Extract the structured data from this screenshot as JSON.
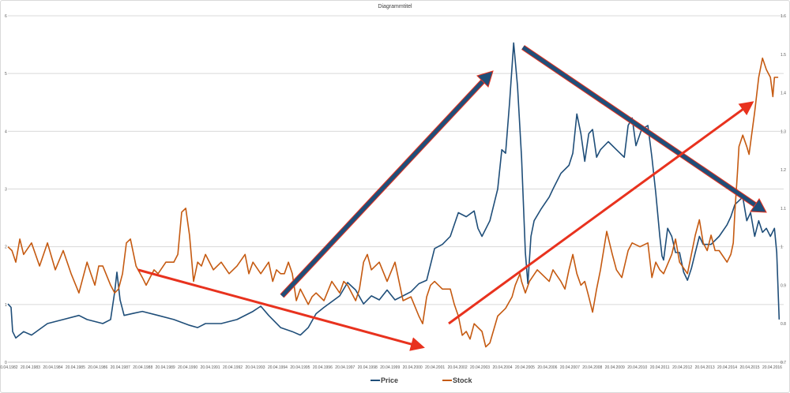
{
  "chart_data": {
    "type": "line",
    "title": "Diagrammtitel",
    "xlabel": "",
    "ylabel": "",
    "x_unit": "decimal year",
    "xlim": [
      1982.3,
      2016.6
    ],
    "ylim_left": [
      0,
      6
    ],
    "ylim_right": [
      0.7,
      1.6
    ],
    "grid": true,
    "legend_position": "bottom",
    "y_ticks_left": [
      "0",
      "1",
      "2",
      "3",
      "4",
      "5",
      "6"
    ],
    "y_ticks_right": [
      "0.7",
      "0.8",
      "0.9",
      "1",
      "1.1",
      "1.2",
      "1.3",
      "1.4",
      "1.5",
      "1.6"
    ],
    "x_ticks": [
      "20.04.1982",
      "20.04.1983",
      "20.04.1984",
      "20.04.1985",
      "20.04.1986",
      "20.04.1987",
      "20.04.1988",
      "20.04.1989",
      "20.04.1990",
      "20.04.1991",
      "20.04.1992",
      "20.04.1993",
      "20.04.1994",
      "20.04.1995",
      "20.04.1996",
      "20.04.1997",
      "20.04.1998",
      "20.04.1999",
      "20.04.2000",
      "20.04.2001",
      "20.04.2002",
      "20.04.2003",
      "20.04.2004",
      "20.04.2005",
      "20.04.2006",
      "20.04.2007",
      "20.04.2008",
      "20.04.2009",
      "20.04.2010",
      "20.04.2011",
      "20.04.2012",
      "20.04.2013",
      "20.04.2014",
      "20.04.2015",
      "20.04.2016"
    ],
    "series": [
      {
        "name": "Price",
        "axis": "left",
        "color": "#1f4e79",
        "x": [
          1982.3,
          1982.44,
          1982.51,
          1982.65,
          1983.0,
          1983.35,
          1984.06,
          1984.76,
          1985.46,
          1985.82,
          1986.52,
          1986.87,
          1987.05,
          1987.15,
          1987.29,
          1987.47,
          1987.92,
          1988.28,
          1988.98,
          1989.68,
          1990.38,
          1990.74,
          1991.09,
          1991.79,
          1992.49,
          1993.2,
          1993.55,
          1993.9,
          1994.43,
          1994.95,
          1995.31,
          1995.66,
          1996.01,
          1996.36,
          1997.06,
          1997.41,
          1997.77,
          1998.12,
          1998.47,
          1998.82,
          1999.17,
          1999.52,
          1999.88,
          2000.23,
          2000.58,
          2000.93,
          2001.28,
          2001.63,
          2001.98,
          2002.34,
          2002.69,
          2003.04,
          2003.21,
          2003.39,
          2003.74,
          2004.09,
          2004.27,
          2004.44,
          2004.62,
          2004.8,
          2004.97,
          2005.15,
          2005.32,
          2005.43,
          2005.57,
          2005.71,
          2006.03,
          2006.38,
          2006.55,
          2006.9,
          2007.26,
          2007.43,
          2007.61,
          2007.79,
          2007.96,
          2008.14,
          2008.31,
          2008.49,
          2008.66,
          2009.01,
          2009.37,
          2009.72,
          2009.89,
          2010.07,
          2010.24,
          2010.49,
          2010.77,
          2010.95,
          2011.12,
          2011.3,
          2011.4,
          2011.47,
          2011.65,
          2011.83,
          2012.0,
          2012.18,
          2012.36,
          2012.53,
          2012.71,
          2012.88,
          2013.06,
          2013.23,
          2013.58,
          2013.94,
          2014.29,
          2014.46,
          2014.64,
          2014.99,
          2015.17,
          2015.34,
          2015.52,
          2015.7,
          2015.87,
          2016.04,
          2016.22,
          2016.4,
          2016.5,
          2016.61
        ],
        "values": [
          1.01,
          0.95,
          0.53,
          0.42,
          0.53,
          0.47,
          0.67,
          0.74,
          0.81,
          0.74,
          0.67,
          0.74,
          1.22,
          1.56,
          1.08,
          0.81,
          0.85,
          0.88,
          0.81,
          0.74,
          0.64,
          0.6,
          0.67,
          0.67,
          0.74,
          0.88,
          0.97,
          0.81,
          0.6,
          0.53,
          0.47,
          0.6,
          0.84,
          0.95,
          1.15,
          1.38,
          1.25,
          1.01,
          1.15,
          1.08,
          1.25,
          1.08,
          1.15,
          1.22,
          1.36,
          1.42,
          1.97,
          2.04,
          2.18,
          2.59,
          2.52,
          2.62,
          2.32,
          2.18,
          2.45,
          3.0,
          3.68,
          3.62,
          4.51,
          5.53,
          4.78,
          3.55,
          1.9,
          1.36,
          2.18,
          2.45,
          2.66,
          2.86,
          3.0,
          3.27,
          3.41,
          3.62,
          4.3,
          3.96,
          3.48,
          3.96,
          4.03,
          3.55,
          3.68,
          3.82,
          3.68,
          3.55,
          4.1,
          4.23,
          3.75,
          4.03,
          4.1,
          3.55,
          2.93,
          2.18,
          1.84,
          1.77,
          2.32,
          2.18,
          1.9,
          1.9,
          1.56,
          1.42,
          1.63,
          1.9,
          2.18,
          2.04,
          2.04,
          2.18,
          2.38,
          2.52,
          2.73,
          2.86,
          2.45,
          2.59,
          2.18,
          2.45,
          2.25,
          2.32,
          2.18,
          2.32,
          1.9,
          0.74
        ]
      },
      {
        "name": "Stock",
        "axis": "right",
        "color": "#c55a11",
        "x": [
          1982.3,
          1982.48,
          1982.65,
          1982.83,
          1983.0,
          1983.35,
          1983.71,
          1984.06,
          1984.41,
          1984.76,
          1985.11,
          1985.46,
          1985.82,
          1985.99,
          1986.17,
          1986.34,
          1986.52,
          1986.87,
          1987.05,
          1987.22,
          1987.4,
          1987.57,
          1987.75,
          1988.0,
          1988.28,
          1988.45,
          1988.8,
          1988.98,
          1989.33,
          1989.68,
          1989.86,
          1990.03,
          1990.21,
          1990.38,
          1990.56,
          1990.74,
          1990.91,
          1991.09,
          1991.44,
          1991.79,
          1992.14,
          1992.49,
          1992.85,
          1993.02,
          1993.2,
          1993.55,
          1993.9,
          1994.08,
          1994.25,
          1994.43,
          1994.6,
          1994.78,
          1994.95,
          1995.13,
          1995.31,
          1995.66,
          1995.83,
          1996.01,
          1996.36,
          1996.71,
          1997.06,
          1997.24,
          1997.41,
          1997.77,
          1997.94,
          1998.12,
          1998.29,
          1998.47,
          1998.82,
          1999.17,
          1999.52,
          1999.88,
          2000.23,
          2000.58,
          2000.75,
          2000.93,
          2001.1,
          2001.28,
          2001.63,
          2001.98,
          2002.16,
          2002.34,
          2002.51,
          2002.69,
          2002.86,
          2003.04,
          2003.39,
          2003.56,
          2003.74,
          2004.09,
          2004.44,
          2004.73,
          2004.87,
          2005.08,
          2005.15,
          2005.32,
          2005.5,
          2005.85,
          2006.03,
          2006.38,
          2006.55,
          2006.9,
          2007.08,
          2007.26,
          2007.43,
          2007.61,
          2007.79,
          2007.96,
          2008.14,
          2008.31,
          2008.49,
          2008.66,
          2008.94,
          2009.19,
          2009.37,
          2009.61,
          2009.89,
          2010.07,
          2010.42,
          2010.77,
          2010.95,
          2011.12,
          2011.3,
          2011.47,
          2011.83,
          2012.0,
          2012.18,
          2012.53,
          2012.88,
          2013.06,
          2013.23,
          2013.41,
          2013.58,
          2013.76,
          2013.94,
          2014.29,
          2014.46,
          2014.57,
          2014.64,
          2014.75,
          2014.82,
          2014.99,
          2015.17,
          2015.27,
          2015.34,
          2015.52,
          2015.7,
          2015.87,
          2016.04,
          2016.22,
          2016.33,
          2016.4,
          2016.57
        ],
        "values": [
          1.0,
          0.99,
          0.96,
          1.02,
          0.98,
          1.01,
          0.95,
          1.01,
          0.94,
          0.99,
          0.93,
          0.88,
          0.96,
          0.93,
          0.9,
          0.95,
          0.95,
          0.9,
          0.88,
          0.89,
          0.93,
          1.01,
          1.02,
          0.95,
          0.92,
          0.9,
          0.94,
          0.93,
          0.96,
          0.96,
          0.98,
          1.09,
          1.1,
          1.03,
          0.91,
          0.96,
          0.95,
          0.98,
          0.94,
          0.96,
          0.93,
          0.95,
          0.98,
          0.93,
          0.96,
          0.93,
          0.96,
          0.91,
          0.94,
          0.93,
          0.93,
          0.96,
          0.93,
          0.86,
          0.89,
          0.85,
          0.87,
          0.88,
          0.86,
          0.91,
          0.88,
          0.91,
          0.9,
          0.86,
          0.89,
          0.96,
          0.98,
          0.94,
          0.96,
          0.91,
          0.96,
          0.86,
          0.87,
          0.82,
          0.8,
          0.87,
          0.9,
          0.91,
          0.89,
          0.89,
          0.85,
          0.82,
          0.77,
          0.78,
          0.76,
          0.8,
          0.78,
          0.74,
          0.75,
          0.82,
          0.84,
          0.87,
          0.9,
          0.93,
          0.91,
          0.88,
          0.91,
          0.94,
          0.93,
          0.91,
          0.94,
          0.91,
          0.89,
          0.94,
          0.98,
          0.93,
          0.9,
          0.91,
          0.87,
          0.83,
          0.89,
          0.94,
          1.04,
          0.98,
          0.94,
          0.92,
          0.99,
          1.01,
          1.0,
          1.01,
          0.92,
          0.96,
          0.94,
          0.93,
          0.98,
          1.02,
          0.96,
          0.93,
          1.03,
          1.07,
          1.01,
          0.99,
          1.03,
          0.99,
          0.99,
          0.96,
          0.98,
          1.01,
          1.09,
          1.19,
          1.26,
          1.29,
          1.26,
          1.24,
          1.27,
          1.35,
          1.44,
          1.49,
          1.46,
          1.44,
          1.39,
          1.44,
          1.44
        ]
      }
    ]
  }
}
